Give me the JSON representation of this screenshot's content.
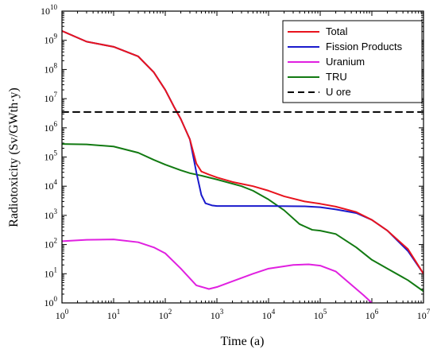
{
  "chart_data": {
    "type": "line",
    "x_scale": "log",
    "y_scale": "log",
    "xlabel": "Time (a)",
    "ylabel": "Radiotoxicity (Sv/GWth·y)",
    "xlim": [
      1,
      10000000
    ],
    "ylim": [
      1,
      10000000000
    ],
    "x_ticks": [
      {
        "value": 1,
        "base": "10",
        "exp": "0"
      },
      {
        "value": 10,
        "base": "10",
        "exp": "1"
      },
      {
        "value": 100,
        "base": "10",
        "exp": "2"
      },
      {
        "value": 1000,
        "base": "10",
        "exp": "3"
      },
      {
        "value": 10000,
        "base": "10",
        "exp": "4"
      },
      {
        "value": 100000,
        "base": "10",
        "exp": "5"
      },
      {
        "value": 1000000,
        "base": "10",
        "exp": "6"
      },
      {
        "value": 10000000,
        "base": "10",
        "exp": "7"
      }
    ],
    "y_ticks": [
      {
        "value": 1,
        "base": "10",
        "exp": "0"
      },
      {
        "value": 10,
        "base": "10",
        "exp": "1"
      },
      {
        "value": 100,
        "base": "10",
        "exp": "2"
      },
      {
        "value": 1000,
        "base": "10",
        "exp": "3"
      },
      {
        "value": 10000,
        "base": "10",
        "exp": "4"
      },
      {
        "value": 100000,
        "base": "10",
        "exp": "5"
      },
      {
        "value": 1000000,
        "base": "10",
        "exp": "6"
      },
      {
        "value": 10000000,
        "base": "10",
        "exp": "7"
      },
      {
        "value": 100000000,
        "base": "10",
        "exp": "8"
      },
      {
        "value": 1000000000,
        "base": "10",
        "exp": "9"
      },
      {
        "value": 10000000000,
        "base": "10",
        "exp": "10"
      }
    ],
    "legend_position": "top-right",
    "grid": false,
    "series": [
      {
        "name": "Total",
        "color": "#e8141e",
        "style": "solid",
        "points": [
          [
            1,
            2100000000.0
          ],
          [
            3,
            900000000.0
          ],
          [
            10,
            600000000.0
          ],
          [
            30,
            280000000.0
          ],
          [
            60,
            80000000.0
          ],
          [
            100,
            20000000.0
          ],
          [
            150,
            5000000.0
          ],
          [
            200,
            2000000.0
          ],
          [
            300,
            400000.0
          ],
          [
            400,
            60000.0
          ],
          [
            500,
            32000.0
          ],
          [
            700,
            25000.0
          ],
          [
            1000,
            20000.0
          ],
          [
            2000,
            14000.0
          ],
          [
            3000,
            12000.0
          ],
          [
            5000,
            10000.0
          ],
          [
            10000,
            7000.0
          ],
          [
            20000,
            4500.0
          ],
          [
            50000,
            3000.0
          ],
          [
            100000,
            2500.0
          ],
          [
            200000,
            2000.0
          ],
          [
            500000,
            1300.0
          ],
          [
            1000000,
            700.0
          ],
          [
            2000000,
            300.0
          ],
          [
            5000000,
            70.0
          ],
          [
            10000000,
            10.0
          ]
        ]
      },
      {
        "name": "Fission Products",
        "color": "#1a1acc",
        "style": "solid",
        "points": [
          [
            1,
            2100000000.0
          ],
          [
            3,
            900000000.0
          ],
          [
            10,
            600000000.0
          ],
          [
            30,
            280000000.0
          ],
          [
            60,
            80000000.0
          ],
          [
            100,
            20000000.0
          ],
          [
            150,
            5000000.0
          ],
          [
            200,
            2000000.0
          ],
          [
            300,
            400000.0
          ],
          [
            400,
            30000.0
          ],
          [
            500,
            5000.0
          ],
          [
            600,
            2600.0
          ],
          [
            800,
            2200.0
          ],
          [
            1000,
            2100.0
          ],
          [
            3000,
            2100.0
          ],
          [
            10000,
            2100.0
          ],
          [
            50000,
            2050.0
          ],
          [
            100000,
            1900.0
          ],
          [
            200000,
            1600.0
          ],
          [
            500000,
            1200.0
          ],
          [
            1000000,
            700.0
          ],
          [
            2000000,
            300.0
          ],
          [
            5000000,
            60.0
          ],
          [
            10000000,
            10.0
          ]
        ]
      },
      {
        "name": "Uranium",
        "color": "#e020e0",
        "style": "solid",
        "points": [
          [
            1,
            130.0
          ],
          [
            3,
            145.0
          ],
          [
            10,
            150.0
          ],
          [
            30,
            120.0
          ],
          [
            60,
            80.0
          ],
          [
            100,
            50.0
          ],
          [
            200,
            15.0
          ],
          [
            400,
            4.0
          ],
          [
            700,
            3.0
          ],
          [
            1000,
            3.5
          ],
          [
            2000,
            5.5
          ],
          [
            5000,
            10.0
          ],
          [
            10000,
            15.0
          ],
          [
            30000,
            20.0
          ],
          [
            60000,
            21.0
          ],
          [
            100000,
            19.0
          ],
          [
            200000,
            12.0
          ],
          [
            500000,
            3.0
          ],
          [
            700000,
            1.8
          ],
          [
            1000000,
            1.0
          ]
        ]
      },
      {
        "name": "TRU",
        "color": "#127a12",
        "style": "solid",
        "points": [
          [
            1,
            280000.0
          ],
          [
            3,
            270000.0
          ],
          [
            10,
            230000.0
          ],
          [
            30,
            140000.0
          ],
          [
            60,
            80000.0
          ],
          [
            100,
            55000.0
          ],
          [
            200,
            35000.0
          ],
          [
            300,
            28000.0
          ],
          [
            500,
            23000.0
          ],
          [
            1000,
            17000.0
          ],
          [
            3000,
            10000.0
          ],
          [
            5000,
            7000.0
          ],
          [
            7000,
            5000.0
          ],
          [
            10000,
            3500.0
          ],
          [
            20000,
            1500.0
          ],
          [
            40000,
            500.0
          ],
          [
            70000,
            320.0
          ],
          [
            100000,
            300.0
          ],
          [
            200000,
            230.0
          ],
          [
            500000,
            80.0
          ],
          [
            1000000,
            30.0
          ],
          [
            2000000,
            15.0
          ],
          [
            5000000,
            6.0
          ],
          [
            10000000,
            2.5
          ]
        ]
      },
      {
        "name": "U ore",
        "color": "#000000",
        "style": "dashed",
        "points": [
          [
            1,
            3500000.0
          ],
          [
            10000000,
            3500000.0
          ]
        ]
      }
    ]
  }
}
